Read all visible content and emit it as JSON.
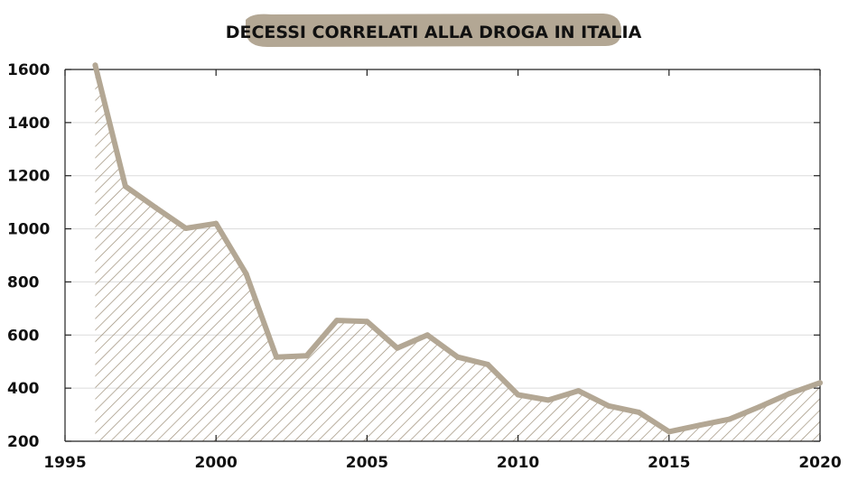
{
  "chart_data": {
    "type": "area",
    "title": "DECESSI CORRELATI ALLA DROGA IN ITALIA",
    "xlabel": "",
    "ylabel": "",
    "xlim": [
      1995,
      2020
    ],
    "ylim": [
      200,
      1600
    ],
    "x_ticks": [
      1995,
      2000,
      2005,
      2010,
      2015,
      2020
    ],
    "y_ticks": [
      200,
      400,
      600,
      800,
      1000,
      1200,
      1400,
      1600
    ],
    "grid": true,
    "series": [
      {
        "x": [
          1996,
          1997,
          1998,
          1999,
          2000,
          2001,
          2002,
          2003,
          2004,
          2005,
          2006,
          2007,
          2008,
          2009,
          2010,
          2011,
          2012,
          2013,
          2014,
          2015,
          2016,
          2017,
          2018,
          2019,
          2020
        ],
        "values": [
          1616,
          1160,
          1080,
          1002,
          1020,
          830,
          517,
          522,
          655,
          651,
          551,
          600,
          517,
          489,
          375,
          355,
          390,
          333,
          309,
          236,
          260,
          283,
          330,
          380,
          420
        ]
      }
    ]
  },
  "colors": {
    "line": "#b3a794",
    "hatch": "#9c8e78",
    "title_badge": "#b3a794",
    "grid": "#dcdcdc",
    "axis": "#222222",
    "text": "#111111"
  }
}
